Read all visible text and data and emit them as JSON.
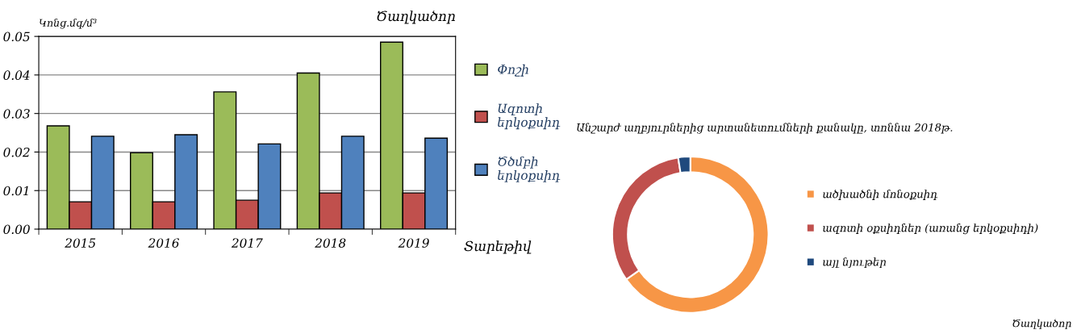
{
  "chart_data": [
    {
      "type": "bar",
      "title": "Ծաղկածոր",
      "ylabel": "Կոնց.մգ/մ³",
      "xlabel": "Տարեթիվ",
      "categories": [
        "2015",
        "2016",
        "2017",
        "2018",
        "2019"
      ],
      "series": [
        {
          "name": "Փոշի",
          "color": "#9bbb59",
          "values": [
            0.0268,
            0.0198,
            0.0356,
            0.0405,
            0.0485
          ]
        },
        {
          "name": "Ազոտի երկօքսիդ",
          "color": "#c0504d",
          "values": [
            0.0071,
            0.0071,
            0.0075,
            0.0094,
            0.0094
          ]
        },
        {
          "name": "Ծծմբի երկօքսիդ",
          "color": "#4f81bd",
          "values": [
            0.0241,
            0.0245,
            0.0221,
            0.0241,
            0.0236
          ]
        }
      ],
      "ylim": [
        0,
        0.05
      ],
      "yticks": [
        {
          "value": 0,
          "label": "0.00"
        },
        0.01,
        0.02,
        0.03,
        0.04,
        0.05
      ],
      "grid": "y",
      "legend": "right"
    },
    {
      "type": "donut",
      "title": "Անշարժ աղբյուրներից արտանետումների քանակը, տոննա 2018թ.",
      "categories": [
        "ածխածնի մոնօքսիդ",
        "ազոտի օքսիդներ (առանց երկօքսիդի)",
        "այլ նյութեր"
      ],
      "values": [
        65.3,
        32.2,
        2.5
      ],
      "colors": [
        "#f79646",
        "#c0504d",
        "#1f497d"
      ],
      "annotations": [
        "Ծաղկածոր"
      ],
      "legend": "right"
    }
  ]
}
